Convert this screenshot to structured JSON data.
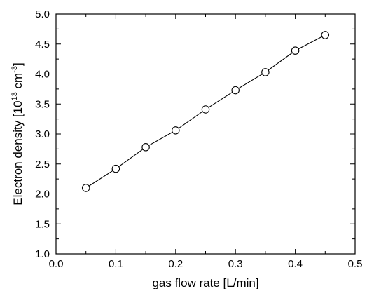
{
  "chart_data": {
    "type": "line",
    "title": "",
    "xlabel": "gas flow rate [L/min]",
    "ylabel_main": "Electron density [10",
    "ylabel_exp1": "13",
    "ylabel_mid": " cm",
    "ylabel_exp2": "-3",
    "ylabel_end": "]",
    "xlim": [
      0.0,
      0.5
    ],
    "ylim": [
      1.0,
      5.0
    ],
    "xticks": [
      "0.0",
      "0.1",
      "0.2",
      "0.3",
      "0.4",
      "0.5"
    ],
    "yticks": [
      "1.0",
      "1.5",
      "2.0",
      "2.5",
      "3.0",
      "3.5",
      "4.0",
      "4.5",
      "5.0"
    ],
    "grid": false,
    "marker": "open-circle",
    "series": [
      {
        "x": [
          0.05,
          0.1,
          0.15,
          0.2,
          0.25,
          0.3,
          0.35,
          0.4,
          0.45
        ],
        "y": [
          2.1,
          2.42,
          2.78,
          3.06,
          3.41,
          3.73,
          4.03,
          4.39,
          4.65
        ]
      }
    ]
  }
}
